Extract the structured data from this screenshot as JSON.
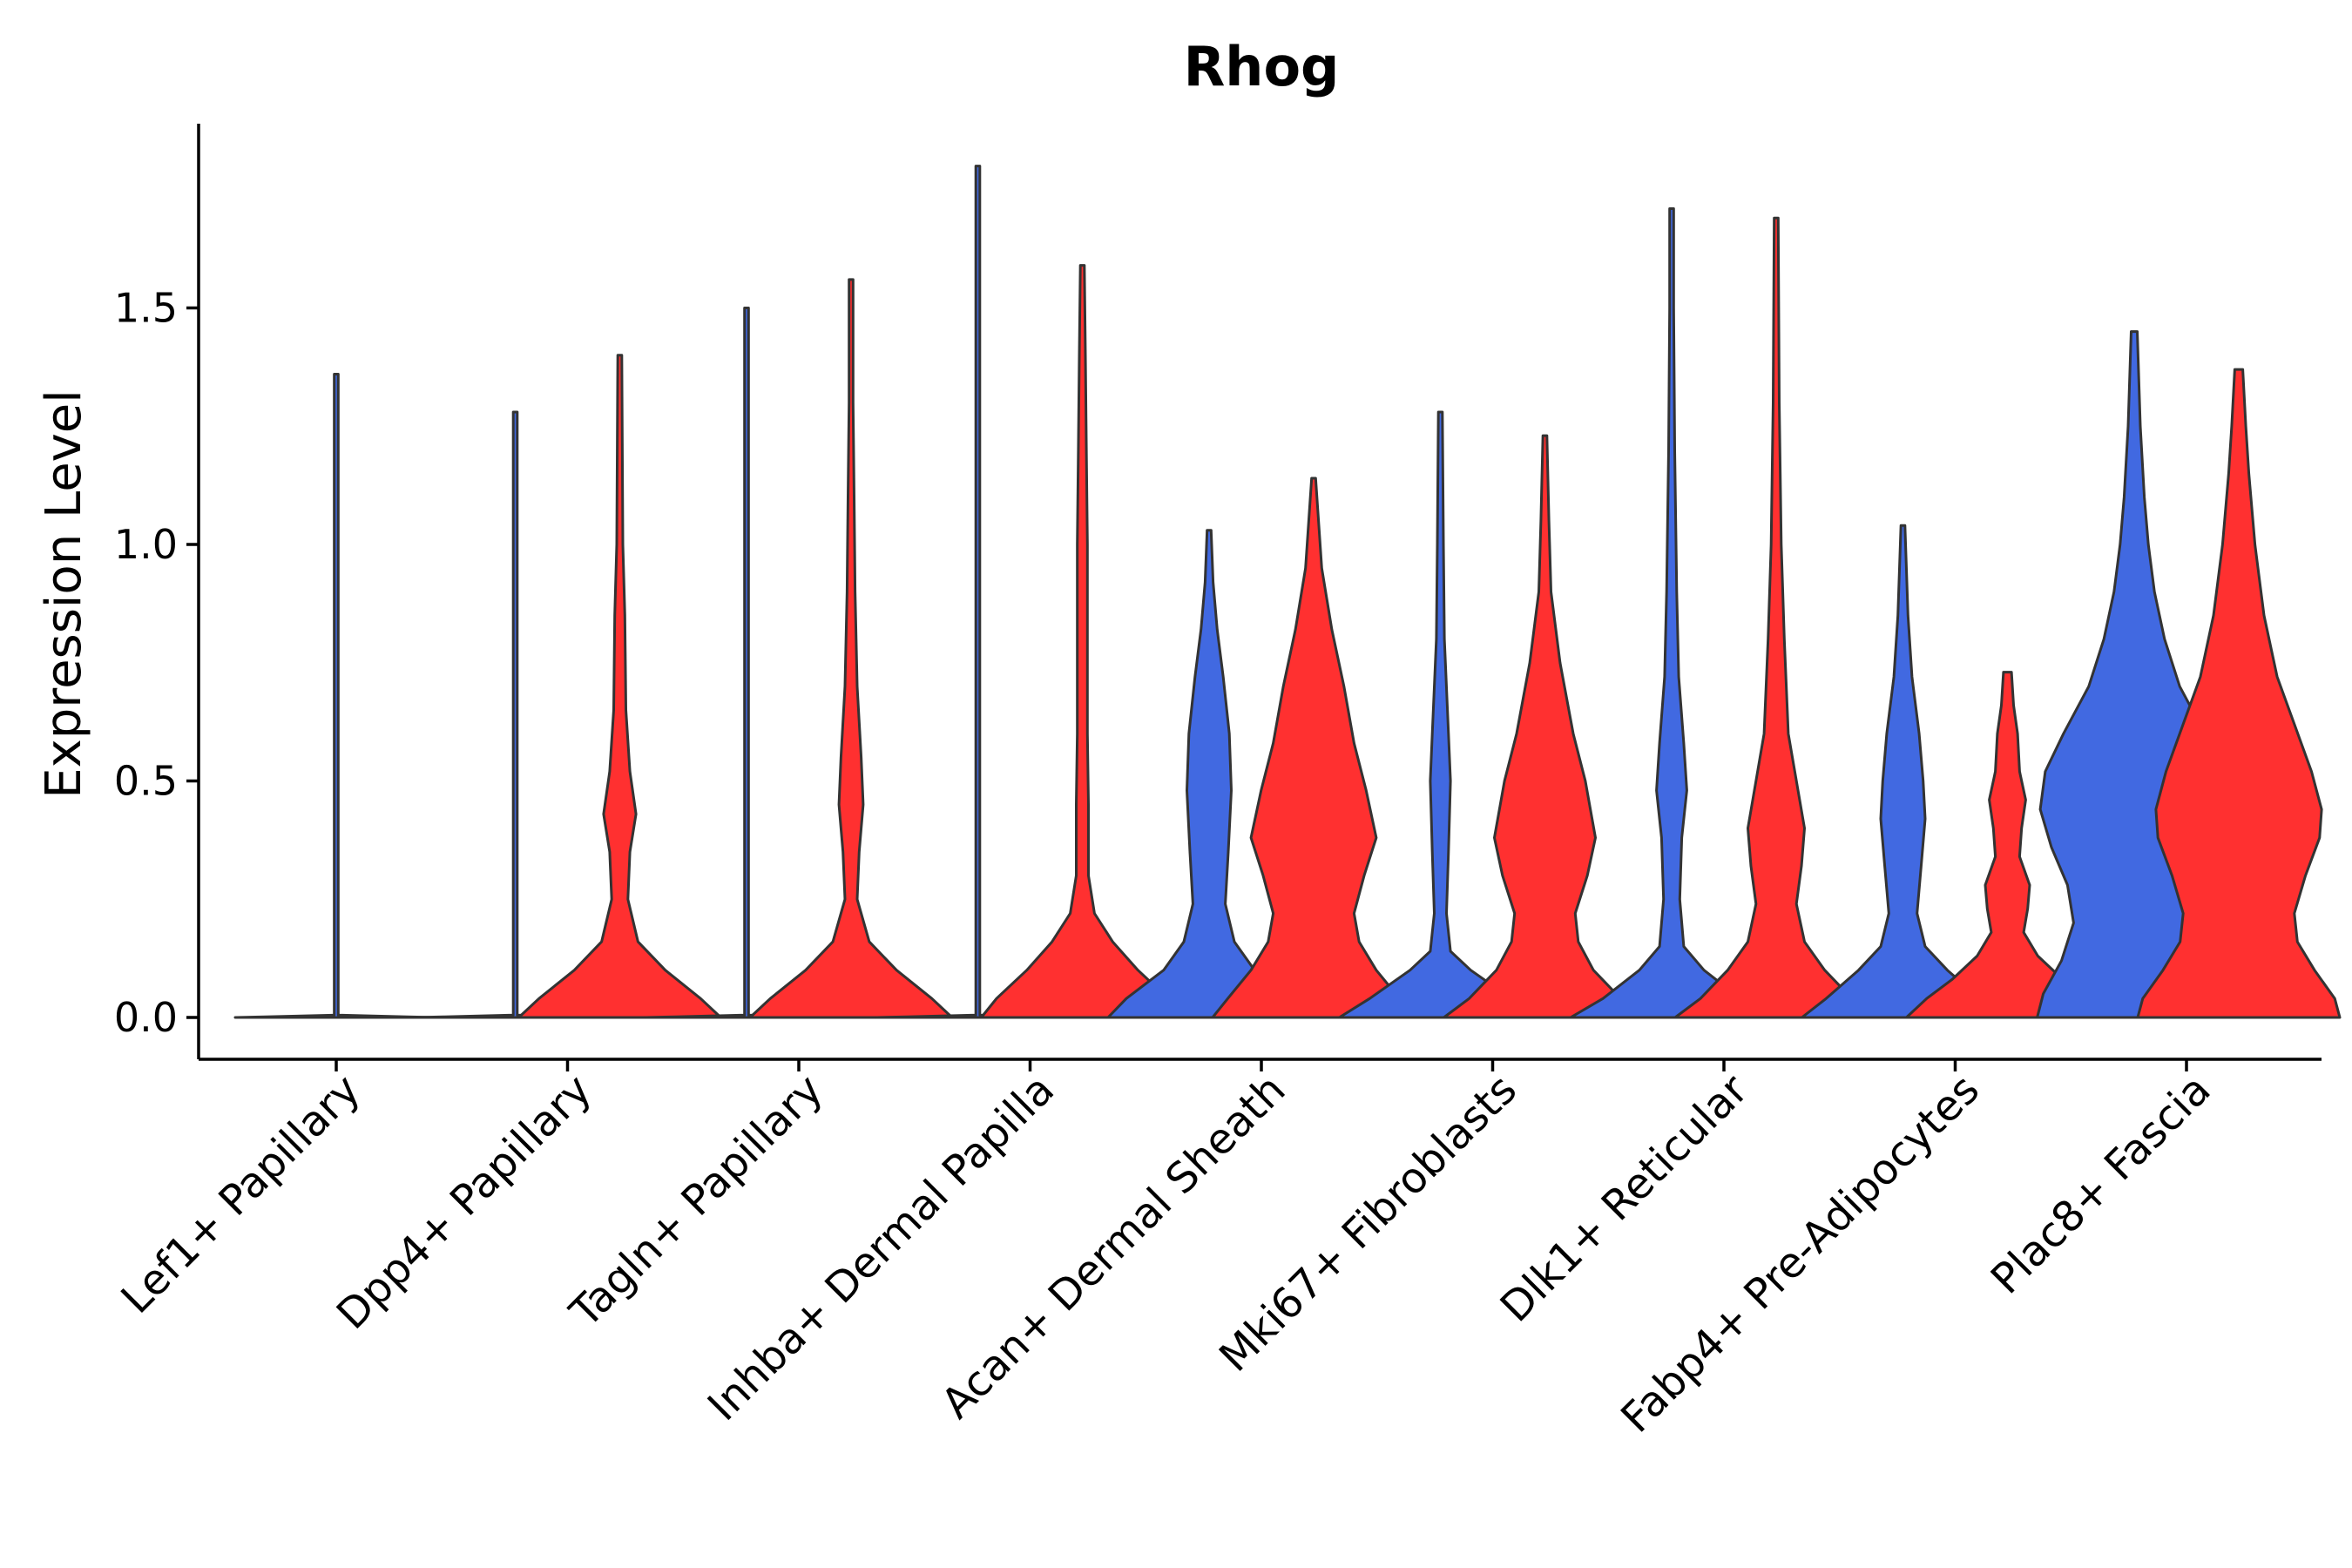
{
  "chart_data": {
    "type": "violin",
    "title": "Rhog",
    "xlabel": "",
    "ylabel": "Expression Level",
    "ylim": [
      -0.09,
      1.9
    ],
    "yticks": [
      0.0,
      0.5,
      1.0,
      1.5
    ],
    "ytick_labels": [
      "0.0",
      "0.5",
      "1.0",
      "1.5"
    ],
    "grid": false,
    "legend": "none",
    "colors": {
      "group1": "#4169e1",
      "group2": "#ff3030",
      "outline": "#333333"
    },
    "categories": [
      "Lef1+ Papillary",
      "Dpp4+ Papillary",
      "Tagln+ Papillary",
      "Inhba+ Dermal Papilla",
      "Acan+ Dermal Sheath",
      "Mki67+ Fibroblasts",
      "Dlk1+ Reticular",
      "Fabp4+ Pre-Adipocytes",
      "Plac8+ Fascia"
    ],
    "violins": [
      {
        "category": "Lef1+ Papillary",
        "groups": [
          {
            "group": "group1",
            "max": 1.36,
            "profile": [
              [
                0.0,
                1.0
              ],
              [
                0.0015,
                0.7
              ],
              [
                0.005,
                0.02
              ],
              [
                1.36,
                0.02
              ]
            ]
          }
        ]
      },
      {
        "category": "Dpp4+ Papillary",
        "groups": [
          {
            "group": "group1",
            "max": 1.28,
            "profile": [
              [
                0.0,
                1.0
              ],
              [
                0.0015,
                0.7
              ],
              [
                0.005,
                0.02
              ],
              [
                1.28,
                0.02
              ]
            ]
          },
          {
            "group": "group2",
            "max": 1.4,
            "profile": [
              [
                0.0,
                1.0
              ],
              [
                0.04,
                0.8
              ],
              [
                0.1,
                0.45
              ],
              [
                0.16,
                0.18
              ],
              [
                0.25,
                0.08
              ],
              [
                0.35,
                0.1
              ],
              [
                0.43,
                0.16
              ],
              [
                0.52,
                0.1
              ],
              [
                0.65,
                0.06
              ],
              [
                0.85,
                0.05
              ],
              [
                1.0,
                0.03
              ],
              [
                1.2,
                0.025
              ],
              [
                1.4,
                0.02
              ]
            ]
          }
        ]
      },
      {
        "category": "Tagln+ Papillary",
        "groups": [
          {
            "group": "group1",
            "max": 1.5,
            "profile": [
              [
                0.0,
                1.0
              ],
              [
                0.0015,
                0.7
              ],
              [
                0.005,
                0.02
              ],
              [
                1.5,
                0.02
              ]
            ]
          },
          {
            "group": "group2",
            "max": 1.56,
            "profile": [
              [
                0.0,
                1.0
              ],
              [
                0.04,
                0.8
              ],
              [
                0.1,
                0.45
              ],
              [
                0.16,
                0.18
              ],
              [
                0.25,
                0.06
              ],
              [
                0.35,
                0.08
              ],
              [
                0.45,
                0.12
              ],
              [
                0.55,
                0.1
              ],
              [
                0.7,
                0.06
              ],
              [
                0.9,
                0.04
              ],
              [
                1.1,
                0.03
              ],
              [
                1.3,
                0.02
              ],
              [
                1.56,
                0.02
              ]
            ]
          }
        ]
      },
      {
        "category": "Inhba+ Dermal Papilla",
        "groups": [
          {
            "group": "group1",
            "max": 1.8,
            "profile": [
              [
                0.0,
                1.0
              ],
              [
                0.0015,
                0.7
              ],
              [
                0.005,
                0.02
              ],
              [
                1.8,
                0.02
              ]
            ]
          },
          {
            "group": "group2",
            "max": 1.59,
            "profile": [
              [
                0.0,
                1.0
              ],
              [
                0.04,
                0.85
              ],
              [
                0.1,
                0.55
              ],
              [
                0.16,
                0.3
              ],
              [
                0.22,
                0.12
              ],
              [
                0.3,
                0.06
              ],
              [
                0.45,
                0.06
              ],
              [
                0.6,
                0.05
              ],
              [
                0.8,
                0.05
              ],
              [
                1.0,
                0.05
              ],
              [
                1.2,
                0.04
              ],
              [
                1.4,
                0.03
              ],
              [
                1.59,
                0.02
              ]
            ]
          }
        ]
      },
      {
        "category": "Acan+ Dermal Sheath",
        "groups": [
          {
            "group": "group1",
            "max": 1.03,
            "profile": [
              [
                0.0,
                1.0
              ],
              [
                0.04,
                0.82
              ],
              [
                0.1,
                0.45
              ],
              [
                0.16,
                0.25
              ],
              [
                0.24,
                0.16
              ],
              [
                0.35,
                0.19
              ],
              [
                0.48,
                0.22
              ],
              [
                0.6,
                0.2
              ],
              [
                0.72,
                0.14
              ],
              [
                0.82,
                0.08
              ],
              [
                0.92,
                0.04
              ],
              [
                1.03,
                0.02
              ]
            ]
          },
          {
            "group": "group2",
            "max": 1.14,
            "profile": [
              [
                0.0,
                1.0
              ],
              [
                0.04,
                0.85
              ],
              [
                0.1,
                0.62
              ],
              [
                0.16,
                0.45
              ],
              [
                0.22,
                0.4
              ],
              [
                0.3,
                0.5
              ],
              [
                0.38,
                0.62
              ],
              [
                0.48,
                0.52
              ],
              [
                0.58,
                0.4
              ],
              [
                0.7,
                0.3
              ],
              [
                0.82,
                0.18
              ],
              [
                0.95,
                0.08
              ],
              [
                1.14,
                0.02
              ]
            ]
          }
        ]
      },
      {
        "category": "Mki67+ Fibroblasts",
        "groups": [
          {
            "group": "group1",
            "max": 1.28,
            "profile": [
              [
                0.0,
                1.0
              ],
              [
                0.04,
                0.7
              ],
              [
                0.1,
                0.3
              ],
              [
                0.14,
                0.1
              ],
              [
                0.22,
                0.06
              ],
              [
                0.35,
                0.08
              ],
              [
                0.5,
                0.1
              ],
              [
                0.6,
                0.08
              ],
              [
                0.8,
                0.04
              ],
              [
                1.0,
                0.03
              ],
              [
                1.28,
                0.02
              ]
            ]
          },
          {
            "group": "group2",
            "max": 1.23,
            "profile": [
              [
                0.0,
                1.0
              ],
              [
                0.04,
                0.75
              ],
              [
                0.1,
                0.48
              ],
              [
                0.16,
                0.33
              ],
              [
                0.22,
                0.3
              ],
              [
                0.3,
                0.42
              ],
              [
                0.38,
                0.5
              ],
              [
                0.5,
                0.4
              ],
              [
                0.6,
                0.28
              ],
              [
                0.75,
                0.15
              ],
              [
                0.9,
                0.06
              ],
              [
                1.05,
                0.04
              ],
              [
                1.23,
                0.02
              ]
            ]
          }
        ]
      },
      {
        "category": "Dlk1+ Reticular",
        "groups": [
          {
            "group": "group1",
            "max": 1.71,
            "profile": [
              [
                0.0,
                1.0
              ],
              [
                0.04,
                0.68
              ],
              [
                0.1,
                0.32
              ],
              [
                0.15,
                0.12
              ],
              [
                0.25,
                0.08
              ],
              [
                0.38,
                0.1
              ],
              [
                0.48,
                0.15
              ],
              [
                0.58,
                0.12
              ],
              [
                0.72,
                0.07
              ],
              [
                0.9,
                0.05
              ],
              [
                1.2,
                0.03
              ],
              [
                1.5,
                0.02
              ],
              [
                1.71,
                0.02
              ]
            ]
          },
          {
            "group": "group2",
            "max": 1.69,
            "profile": [
              [
                0.0,
                1.0
              ],
              [
                0.04,
                0.75
              ],
              [
                0.1,
                0.48
              ],
              [
                0.16,
                0.28
              ],
              [
                0.24,
                0.2
              ],
              [
                0.32,
                0.25
              ],
              [
                0.4,
                0.28
              ],
              [
                0.5,
                0.2
              ],
              [
                0.6,
                0.12
              ],
              [
                0.8,
                0.08
              ],
              [
                1.0,
                0.05
              ],
              [
                1.3,
                0.03
              ],
              [
                1.69,
                0.02
              ]
            ]
          }
        ]
      },
      {
        "category": "Fabp4+ Pre-Adipocytes",
        "groups": [
          {
            "group": "group1",
            "max": 1.04,
            "profile": [
              [
                0.0,
                1.0
              ],
              [
                0.04,
                0.76
              ],
              [
                0.1,
                0.44
              ],
              [
                0.15,
                0.22
              ],
              [
                0.22,
                0.14
              ],
              [
                0.32,
                0.18
              ],
              [
                0.42,
                0.22
              ],
              [
                0.5,
                0.2
              ],
              [
                0.6,
                0.16
              ],
              [
                0.72,
                0.09
              ],
              [
                0.85,
                0.05
              ],
              [
                1.04,
                0.02
              ]
            ]
          },
          {
            "group": "group2",
            "max": 0.73,
            "profile": [
              [
                0.0,
                1.0
              ],
              [
                0.04,
                0.8
              ],
              [
                0.08,
                0.55
              ],
              [
                0.13,
                0.3
              ],
              [
                0.18,
                0.16
              ],
              [
                0.23,
                0.2
              ],
              [
                0.28,
                0.22
              ],
              [
                0.34,
                0.12
              ],
              [
                0.4,
                0.14
              ],
              [
                0.46,
                0.18
              ],
              [
                0.52,
                0.12
              ],
              [
                0.6,
                0.1
              ],
              [
                0.66,
                0.06
              ],
              [
                0.73,
                0.04
              ]
            ]
          }
        ]
      },
      {
        "category": "Plac8+ Fascia",
        "groups": [
          {
            "group": "group1",
            "max": 1.45,
            "profile": [
              [
                0.0,
                0.96
              ],
              [
                0.05,
                0.9
              ],
              [
                0.12,
                0.72
              ],
              [
                0.2,
                0.6
              ],
              [
                0.28,
                0.66
              ],
              [
                0.36,
                0.82
              ],
              [
                0.44,
                0.93
              ],
              [
                0.52,
                0.88
              ],
              [
                0.6,
                0.7
              ],
              [
                0.7,
                0.45
              ],
              [
                0.8,
                0.3
              ],
              [
                0.9,
                0.2
              ],
              [
                1.0,
                0.14
              ],
              [
                1.1,
                0.1
              ],
              [
                1.25,
                0.06
              ],
              [
                1.45,
                0.03
              ]
            ]
          },
          {
            "group": "group2",
            "max": 1.37,
            "profile": [
              [
                0.0,
                1.0
              ],
              [
                0.04,
                0.95
              ],
              [
                0.1,
                0.75
              ],
              [
                0.16,
                0.58
              ],
              [
                0.22,
                0.55
              ],
              [
                0.3,
                0.66
              ],
              [
                0.38,
                0.8
              ],
              [
                0.44,
                0.82
              ],
              [
                0.52,
                0.72
              ],
              [
                0.62,
                0.55
              ],
              [
                0.72,
                0.38
              ],
              [
                0.85,
                0.25
              ],
              [
                1.0,
                0.16
              ],
              [
                1.15,
                0.1
              ],
              [
                1.25,
                0.07
              ],
              [
                1.37,
                0.04
              ]
            ]
          }
        ]
      }
    ]
  }
}
